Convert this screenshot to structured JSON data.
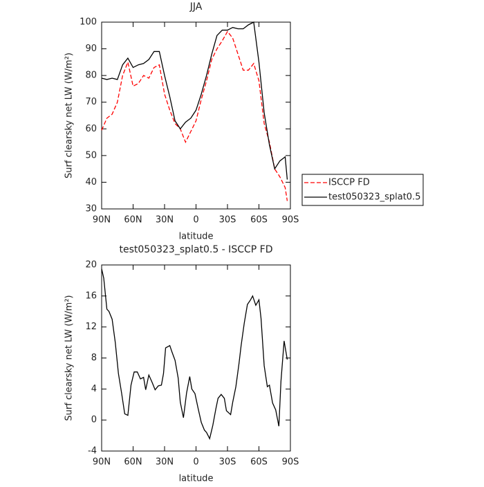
{
  "chart_data": [
    {
      "type": "line",
      "title": "JJA",
      "xlabel": "latitude",
      "ylabel": "Surf clearsky net LW (W/m²)",
      "x": [
        90,
        85,
        80,
        75,
        70,
        65,
        60,
        55,
        50,
        45,
        40,
        35,
        30,
        25,
        20,
        15,
        10,
        5,
        0,
        -5,
        -10,
        -15,
        -20,
        -25,
        -30,
        -35,
        -40,
        -45,
        -50,
        -55,
        -60,
        -65,
        -70,
        -75,
        -80,
        -85,
        -87
      ],
      "series": [
        {
          "name": "ISCCP FD",
          "color": "#ff0000",
          "line_style": "dashed",
          "values": [
            59.5,
            64,
            65.5,
            70,
            80,
            85,
            76,
            77,
            80,
            79,
            83,
            84,
            73,
            67,
            62,
            60,
            55,
            59,
            63,
            71,
            78,
            86,
            90,
            93,
            96.5,
            94,
            88,
            82,
            82,
            84.5,
            78,
            62,
            55,
            45,
            42,
            38,
            33
          ]
        },
        {
          "name": "test050323_splat0.5",
          "color": "#000000",
          "line_style": "solid",
          "values": [
            79,
            78.5,
            79,
            78.5,
            84,
            86.5,
            83,
            84,
            84.5,
            86,
            89,
            89,
            80,
            72,
            63,
            60,
            62.5,
            64,
            67,
            73,
            80,
            88,
            95,
            97,
            97,
            98,
            97.5,
            97.5,
            99,
            100,
            85,
            66,
            54,
            45,
            48,
            49.5,
            41
          ]
        }
      ],
      "xlim": [
        90,
        -90
      ],
      "ylim": [
        30,
        100
      ],
      "xticks": [
        {
          "value": 90,
          "label": "90N"
        },
        {
          "value": 60,
          "label": "60N"
        },
        {
          "value": 30,
          "label": "30N"
        },
        0,
        {
          "value": -30,
          "label": "30S"
        },
        {
          "value": -60,
          "label": "60S"
        },
        {
          "value": -90,
          "label": "90S"
        }
      ],
      "yticks": [
        30,
        40,
        50,
        60,
        70,
        80,
        90,
        100
      ],
      "legend": "outside-right"
    },
    {
      "type": "line",
      "title": "test050323_splat0.5 - ISCCP FD",
      "xlabel": "latitude",
      "ylabel": "Surf clearsky net LW (W/m²)",
      "x": [
        90,
        88,
        85,
        83,
        80,
        77,
        74,
        71,
        68,
        65,
        62,
        59,
        56,
        53,
        50,
        48,
        45,
        42,
        39,
        36,
        33,
        31,
        29,
        25,
        23,
        20,
        17,
        15,
        12,
        9,
        6,
        4,
        1,
        -2,
        -5,
        -8,
        -10,
        -13,
        -16,
        -19,
        -21,
        -24,
        -27,
        -29,
        -33,
        -35,
        -38,
        -41,
        -43,
        -46,
        -49,
        -52,
        -54,
        -57,
        -60,
        -62,
        -65,
        -68,
        -70,
        -73,
        -76,
        -79,
        -81,
        -84,
        -87
      ],
      "series": [
        {
          "color": "#000000",
          "line_style": "solid",
          "values": [
            19.5,
            18.3,
            14.3,
            14,
            13,
            10,
            6,
            3.5,
            0.8,
            0.6,
            4.5,
            6.2,
            6.2,
            5.3,
            5.5,
            3.9,
            5.8,
            4.9,
            3.9,
            4.4,
            4.5,
            6,
            9.3,
            9.6,
            8.8,
            7.7,
            5.4,
            2.3,
            0.3,
            3.5,
            5.6,
            4,
            3.4,
            1.5,
            -0.3,
            -1.3,
            -1.6,
            -2.4,
            -0.7,
            1.5,
            2.8,
            3.3,
            2.8,
            1.2,
            0.7,
            2.3,
            4.3,
            7.3,
            9.6,
            12.5,
            14.9,
            15.5,
            16,
            14.8,
            15.5,
            13.1,
            7,
            4.3,
            4.5,
            2.2,
            1.3,
            -0.8,
            5,
            10.2,
            7.8
          ]
        }
      ],
      "xlim": [
        90,
        -90
      ],
      "ylim": [
        -4,
        20
      ],
      "xticks": [
        {
          "value": 90,
          "label": "90N"
        },
        {
          "value": 60,
          "label": "60N"
        },
        {
          "value": 30,
          "label": "30N"
        },
        0,
        {
          "value": -30,
          "label": "30S"
        },
        {
          "value": -60,
          "label": "60S"
        },
        {
          "value": -90,
          "label": "90S"
        }
      ],
      "yticks": [
        -4,
        0,
        4,
        8,
        12,
        16,
        20
      ]
    }
  ]
}
